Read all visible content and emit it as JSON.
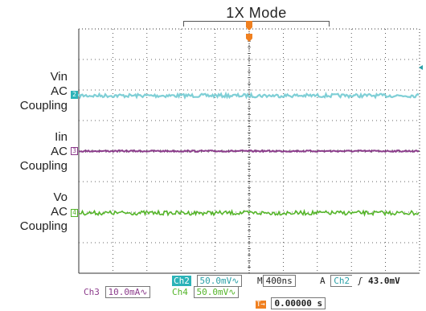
{
  "title": "1X Mode",
  "channels": [
    {
      "id": "ch2",
      "num": "2",
      "label": "Vin",
      "coupling_a": "AC",
      "coupling_b": "Coupling",
      "color": "#7fcfd6",
      "marker_fill": "#2bb3b8"
    },
    {
      "id": "ch3",
      "num": "3",
      "label": "Iin",
      "coupling_a": "AC",
      "coupling_b": "Coupling",
      "color": "#8c3c8c",
      "marker_fill": "#ffffff"
    },
    {
      "id": "ch4",
      "num": "4",
      "label": "Vo",
      "coupling_a": "AC",
      "coupling_b": "Coupling",
      "color": "#55b52a",
      "marker_fill": "#ffffff"
    }
  ],
  "readouts": {
    "ch2_label": "Ch2",
    "ch2_scale": "50.0mV∿",
    "ch3_label": "Ch3",
    "ch3_scale": "10.0mA∿",
    "ch4_label": "Ch4",
    "ch4_scale": "50.0mV∿",
    "timebase_prefix": "M",
    "timebase": "400ns",
    "trigger_mode": "A",
    "trigger_source": "Ch2",
    "trigger_slope": "ʃ",
    "trigger_level": "43.0mV",
    "trigger_position": "0.00000 s"
  },
  "colors": {
    "grid": "#333333",
    "trigger_marker": "#f08020",
    "ch2_readout": "#2aa0a8",
    "ch3_readout": "#8c3c8c",
    "ch4_readout": "#55b52a"
  }
}
